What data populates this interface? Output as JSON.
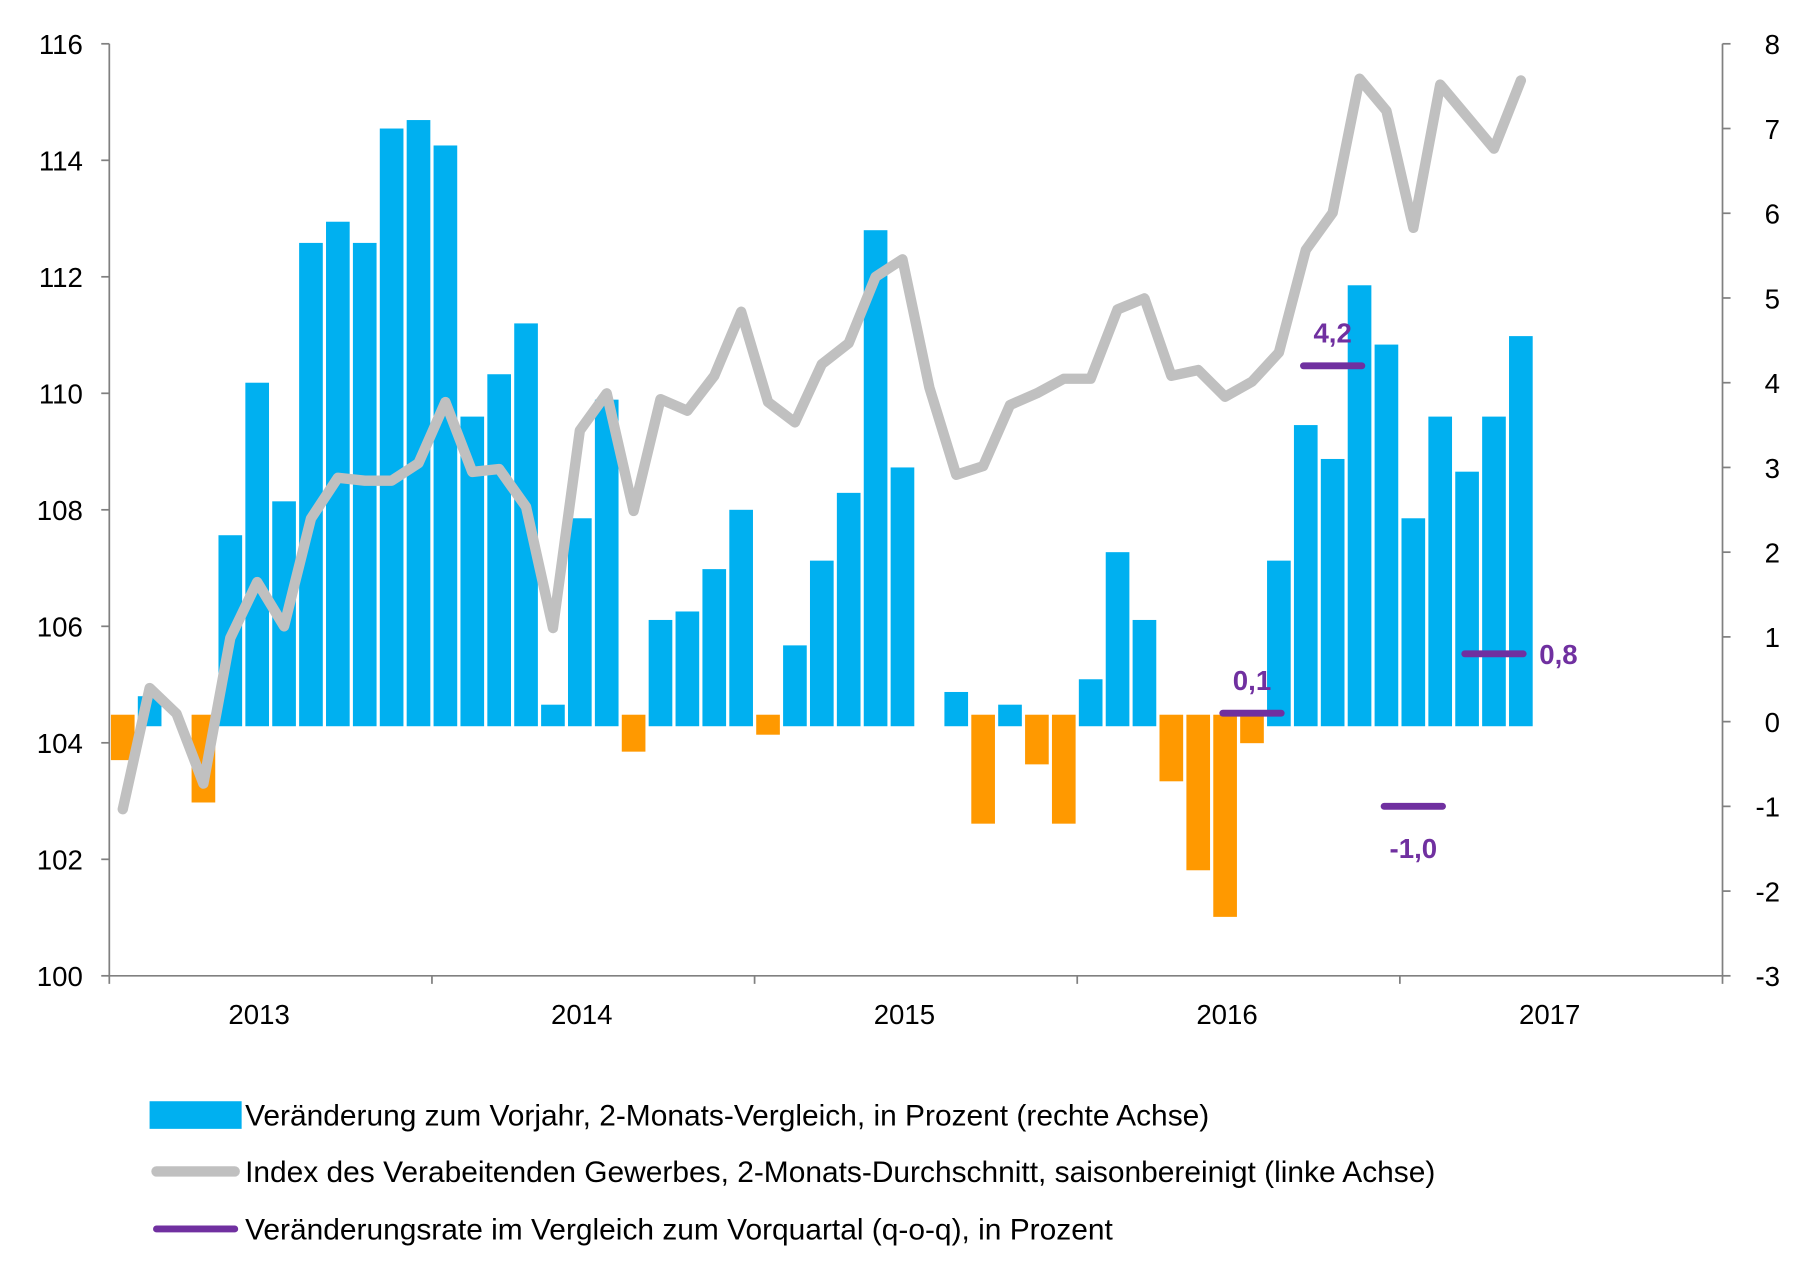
{
  "chart_data": {
    "type": "bar+line",
    "title": "",
    "colors": {
      "bar_positive": "#00B0F0",
      "bar_negative": "#FF9900",
      "index_line": "#C0C0C0",
      "qoq_line": "#7030A0"
    },
    "x_labels": [
      "2013",
      "2014",
      "2015",
      "2016",
      "2017"
    ],
    "x_start_month": "2013-01",
    "left_axis": {
      "range": [
        100,
        116
      ],
      "ticks": [
        "100",
        "102",
        "104",
        "106",
        "108",
        "110",
        "112",
        "114",
        "116"
      ]
    },
    "right_axis": {
      "range": [
        -3,
        8
      ],
      "ticks": [
        "-3",
        "-2",
        "-1",
        "0",
        "1",
        "2",
        "3",
        "4",
        "5",
        "6",
        "7",
        "8"
      ]
    },
    "grid": false,
    "legend_placement": "bottom",
    "series": [
      {
        "name": "Veränderung zum Vorjahr, 2-Monats-Vergleich, in Prozent (rechte Achse)",
        "type": "bar",
        "axis": "right",
        "values": [
          -0.4,
          0.3,
          0,
          -0.9,
          2.2,
          4.0,
          2.6,
          5.65,
          5.9,
          5.65,
          7.0,
          7.1,
          6.8,
          3.6,
          4.1,
          4.7,
          0.2,
          2.4,
          3.8,
          -0.3,
          1.2,
          1.3,
          1.8,
          2.5,
          -0.1,
          0.9,
          1.9,
          2.7,
          5.8,
          3.0,
          0,
          0.35,
          -1.15,
          0.2,
          -0.45,
          -1.15,
          0.5,
          2.0,
          1.2,
          -0.65,
          -1.7,
          -2.25,
          -0.2,
          1.9,
          3.5,
          3.1,
          5.15,
          4.45,
          2.4,
          3.6,
          2.95,
          3.6,
          4.55
        ]
      },
      {
        "name": "Index des Verabeitenden Gewerbes, 2-Monats-Durchschnitt, saisonbereinigt (linke Achse)",
        "type": "line",
        "axis": "left",
        "values": [
          102.86,
          104.94,
          104.5,
          103.3,
          105.8,
          106.76,
          106.0,
          107.85,
          108.55,
          108.5,
          108.5,
          108.8,
          109.85,
          108.65,
          108.7,
          108.05,
          105.97,
          109.36,
          110.0,
          107.98,
          109.9,
          109.7,
          110.3,
          111.4,
          109.85,
          109.5,
          110.5,
          110.86,
          112.0,
          112.3,
          110.1,
          108.6,
          108.75,
          109.8,
          110.0,
          110.25,
          110.25,
          111.44,
          111.63,
          110.3,
          110.4,
          109.94,
          110.2,
          110.7,
          112.46,
          113.1,
          115.4,
          114.85,
          112.84,
          115.3,
          114.75,
          114.2,
          115.37
        ]
      },
      {
        "name": "Veränderungsrate im Vergleich zum Vorquartal (q-o-q), in Prozent",
        "type": "segments",
        "axis": "right",
        "segments": [
          {
            "from": "2016-06",
            "to": "2016-08",
            "value": 0.1,
            "label": "0,1"
          },
          {
            "from": "2016-09",
            "to": "2016-11",
            "value": 4.2,
            "label": "4,2"
          },
          {
            "from": "2016-12",
            "to": "2017-02",
            "value": -1.0,
            "label": "-1,0"
          },
          {
            "from": "2017-03",
            "to": "2017-05",
            "value": 0.8,
            "label": "0,8"
          }
        ]
      }
    ]
  }
}
